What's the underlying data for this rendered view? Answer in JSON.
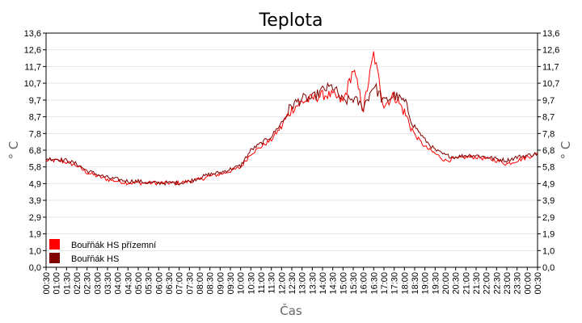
{
  "chart_data": {
    "type": "line",
    "title": "Teplota",
    "xlabel": "Čas",
    "ylabel": "° C",
    "ylabel_right": "° C",
    "ylim": [
      0,
      13.6
    ],
    "yticks": [
      "0,0",
      "1,0",
      "1,9",
      "2,9",
      "3,9",
      "4,9",
      "5,8",
      "6,8",
      "7,8",
      "8,7",
      "9,7",
      "10,7",
      "11,7",
      "12,6",
      "13,6"
    ],
    "ytick_values": [
      0,
      0.97,
      1.94,
      2.91,
      3.89,
      4.86,
      5.83,
      6.8,
      7.77,
      8.74,
      9.71,
      10.69,
      11.66,
      12.63,
      13.6
    ],
    "xticks": [
      "00:30",
      "01:00",
      "01:30",
      "02:00",
      "02:30",
      "03:00",
      "03:30",
      "04:00",
      "04:30",
      "05:00",
      "05:30",
      "06:00",
      "06:30",
      "07:00",
      "07:30",
      "08:00",
      "08:30",
      "09:00",
      "09:30",
      "10:00",
      "10:30",
      "11:00",
      "11:30",
      "12:00",
      "12:30",
      "13:00",
      "13:30",
      "14:00",
      "14:30",
      "15:00",
      "15:30",
      "16:00",
      "16:30",
      "17:00",
      "17:30",
      "18:00",
      "18:30",
      "19:00",
      "19:30",
      "20:00",
      "20:30",
      "21:00",
      "21:30",
      "22:00",
      "22:30",
      "23:00",
      "23:30",
      "00:00",
      "00:30"
    ],
    "grid": true,
    "legend_position": "bottom-left",
    "x_hours": [
      0.5,
      1,
      1.5,
      2,
      2.5,
      3,
      3.5,
      4,
      4.5,
      5,
      5.5,
      6,
      6.5,
      7,
      7.5,
      8,
      8.5,
      9,
      9.5,
      10,
      10.5,
      11,
      11.5,
      12,
      12.5,
      13,
      13.5,
      14,
      14.5,
      15,
      15.5,
      16,
      16.5,
      17,
      17.5,
      18,
      18.5,
      19,
      19.5,
      20,
      20.5,
      21,
      21.5,
      22,
      22.5,
      23,
      23.5,
      24,
      24.5
    ],
    "series": [
      {
        "name": "Bouřňák HS přízemní",
        "color": "#ff0000",
        "values": [
          6.2,
          6.2,
          6.1,
          5.9,
          5.5,
          5.3,
          5.1,
          5.0,
          4.9,
          4.9,
          4.9,
          4.9,
          4.9,
          4.9,
          5.0,
          5.1,
          5.3,
          5.4,
          5.6,
          5.8,
          6.6,
          7.0,
          7.4,
          8.2,
          9.2,
          9.6,
          9.8,
          10.0,
          10.0,
          9.6,
          11.5,
          9.2,
          12.4,
          9.4,
          10.0,
          9.0,
          7.7,
          7.0,
          6.6,
          6.2,
          6.3,
          6.4,
          6.4,
          6.3,
          6.2,
          6.0,
          6.2,
          6.4,
          6.6
        ]
      },
      {
        "name": "Bouřňák HS",
        "color": "#800000",
        "values": [
          6.3,
          6.3,
          6.2,
          6.0,
          5.6,
          5.4,
          5.2,
          5.1,
          5.0,
          5.0,
          4.9,
          4.9,
          4.9,
          4.9,
          5.0,
          5.2,
          5.4,
          5.5,
          5.7,
          5.9,
          6.8,
          7.2,
          7.6,
          8.4,
          9.4,
          9.8,
          9.8,
          10.3,
          10.5,
          9.6,
          9.8,
          9.3,
          10.6,
          9.6,
          10.0,
          9.6,
          8.2,
          7.4,
          6.8,
          6.5,
          6.4,
          6.5,
          6.5,
          6.4,
          6.3,
          6.2,
          6.4,
          6.5,
          6.6
        ]
      }
    ]
  }
}
